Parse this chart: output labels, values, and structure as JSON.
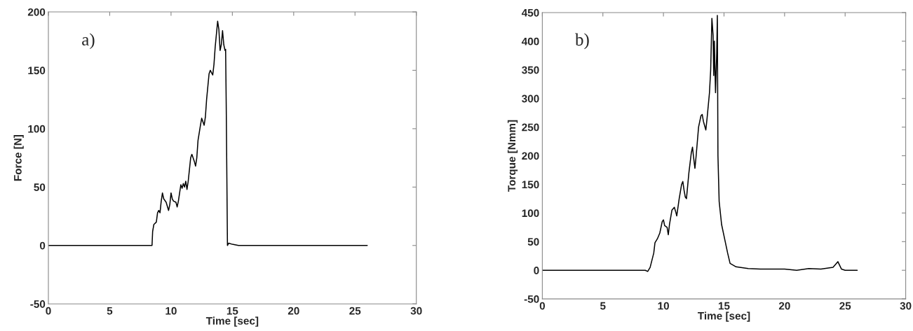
{
  "chart_data": [
    {
      "type": "line",
      "xlabel": "Time [sec]",
      "ylabel": "Force [N]",
      "annotations": [
        "a)"
      ],
      "xlim": [
        0,
        30
      ],
      "xticks": [
        0,
        5,
        10,
        15,
        20,
        25,
        30
      ],
      "ylim": [
        -50,
        200
      ],
      "yticks": [
        -50,
        0,
        50,
        100,
        150,
        200
      ],
      "grid": false,
      "legend": false,
      "series": [
        {
          "color": "#000000",
          "x": [
            0,
            8.45,
            8.5,
            8.6,
            8.8,
            8.9,
            9.0,
            9.1,
            9.2,
            9.3,
            9.4,
            9.6,
            9.8,
            9.9,
            10.0,
            10.1,
            10.2,
            10.4,
            10.5,
            10.6,
            10.7,
            10.8,
            10.9,
            11.0,
            11.1,
            11.2,
            11.3,
            11.4,
            11.5,
            11.6,
            11.7,
            11.9,
            12.0,
            12.1,
            12.2,
            12.4,
            12.5,
            12.6,
            12.7,
            12.8,
            12.9,
            13.1,
            13.2,
            13.3,
            13.4,
            13.5,
            13.6,
            13.8,
            13.9,
            14.0,
            14.1,
            14.2,
            14.3,
            14.4,
            14.45,
            14.5,
            14.6,
            14.7,
            15.0,
            15.5,
            26
          ],
          "values": [
            0,
            0,
            12,
            18,
            20,
            28,
            30,
            28,
            38,
            45,
            40,
            37,
            30,
            35,
            45,
            40,
            38,
            37,
            33,
            38,
            45,
            52,
            49,
            53,
            50,
            55,
            48,
            55,
            65,
            75,
            78,
            72,
            68,
            75,
            90,
            103,
            109,
            106,
            103,
            110,
            125,
            147,
            150,
            148,
            146,
            155,
            170,
            192,
            185,
            167,
            172,
            184,
            172,
            167,
            168,
            120,
            0,
            2,
            1,
            0,
            0
          ]
        }
      ]
    },
    {
      "type": "line",
      "xlabel": "Time [sec]",
      "ylabel": "Torque [Nmm]",
      "annotations": [
        "b)"
      ],
      "xlim": [
        0,
        30
      ],
      "xticks": [
        0,
        5,
        10,
        15,
        20,
        25,
        30
      ],
      "ylim": [
        -50,
        450
      ],
      "yticks": [
        -50,
        0,
        50,
        100,
        150,
        200,
        250,
        300,
        350,
        400,
        450
      ],
      "grid": false,
      "legend": false,
      "series": [
        {
          "color": "#000000",
          "x": [
            0,
            8.5,
            8.7,
            8.9,
            9.2,
            9.3,
            9.5,
            9.7,
            9.9,
            10.0,
            10.1,
            10.3,
            10.4,
            10.5,
            10.7,
            10.9,
            11.0,
            11.1,
            11.3,
            11.5,
            11.6,
            11.7,
            11.8,
            11.9,
            12.1,
            12.3,
            12.4,
            12.5,
            12.6,
            12.7,
            12.9,
            13.1,
            13.2,
            13.3,
            13.5,
            13.6,
            13.8,
            13.9,
            14.0,
            14.1,
            14.15,
            14.2,
            14.3,
            14.4,
            14.45,
            14.5,
            14.6,
            14.8,
            15.0,
            15.3,
            15.5,
            16.0,
            17,
            18,
            19,
            20,
            21,
            22,
            23,
            24,
            24.4,
            24.7,
            25,
            26
          ],
          "values": [
            0,
            0,
            -2,
            5,
            30,
            48,
            55,
            65,
            85,
            88,
            78,
            75,
            62,
            80,
            105,
            110,
            103,
            95,
            125,
            150,
            155,
            140,
            128,
            125,
            170,
            205,
            215,
            195,
            178,
            200,
            250,
            270,
            272,
            260,
            245,
            265,
            310,
            350,
            440,
            410,
            340,
            400,
            310,
            380,
            445,
            200,
            120,
            80,
            60,
            30,
            12,
            6,
            3,
            2,
            2,
            2,
            0,
            3,
            2,
            5,
            15,
            2,
            0,
            0
          ]
        }
      ]
    }
  ]
}
